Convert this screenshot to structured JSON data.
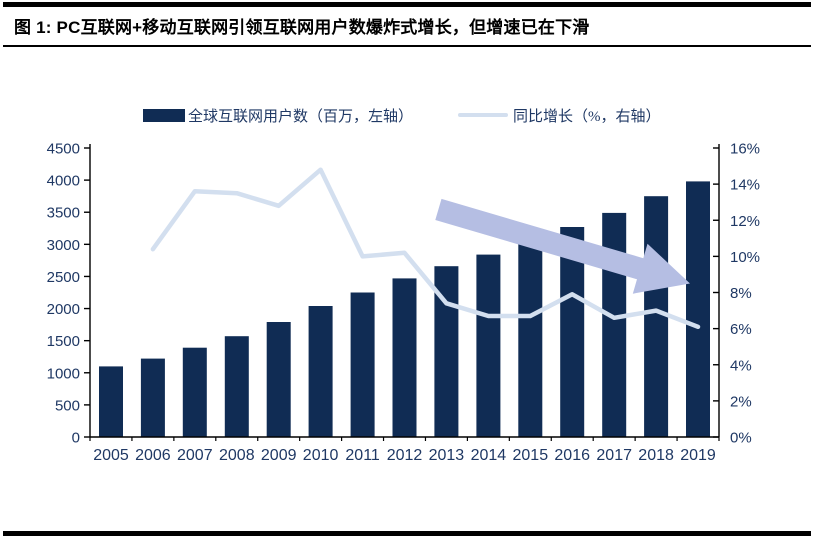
{
  "page": {
    "title": "图 1: PC互联网+移动互联网引领互联网用户数爆炸式增长，但增速已在下滑"
  },
  "legend": {
    "bars_label": "全球互联网用户数（百万，左轴）",
    "line_label": "同比增长（%，右轴）"
  },
  "colors": {
    "bar": "#102c54",
    "line": "#d3dfef",
    "arrow": "#b5bee3",
    "axis_text": "#1f3864",
    "axis_line": "#000000"
  },
  "chart_data": {
    "type": "bar+line",
    "title": "图 1: PC互联网+移动互联网引领互联网用户数爆炸式增长，但增速已在下滑",
    "categories": [
      "2005",
      "2006",
      "2007",
      "2008",
      "2009",
      "2010",
      "2011",
      "2012",
      "2013",
      "2014",
      "2015",
      "2016",
      "2017",
      "2018",
      "2019"
    ],
    "series": [
      {
        "name": "全球互联网用户数（百万，左轴）",
        "type": "bar",
        "axis": "left",
        "values": [
          1100,
          1220,
          1390,
          1570,
          1790,
          2040,
          2250,
          2470,
          2660,
          2840,
          3010,
          3270,
          3490,
          3750,
          3980
        ]
      },
      {
        "name": "同比增长（%，右轴）",
        "type": "line",
        "axis": "right",
        "values": [
          null,
          10.4,
          13.6,
          13.5,
          12.8,
          14.8,
          10.0,
          10.2,
          7.4,
          6.7,
          6.7,
          7.9,
          6.6,
          7.0,
          6.1
        ]
      }
    ],
    "left_axis": {
      "min": 0,
      "max": 4500,
      "step": 500,
      "ticks": [
        "0",
        "500",
        "1000",
        "1500",
        "2000",
        "2500",
        "3000",
        "3500",
        "4000",
        "4500"
      ]
    },
    "right_axis": {
      "min": 0,
      "max": 16,
      "step": 2,
      "ticks": [
        "0%",
        "2%",
        "4%",
        "6%",
        "8%",
        "10%",
        "12%",
        "14%",
        "16%"
      ]
    },
    "grid": false,
    "legend_position": "top",
    "annotation": {
      "type": "arrow-down-trend",
      "from": {
        "category": "2013",
        "pct": 12.6
      },
      "to": {
        "category": "2019",
        "pct": 8.5
      }
    }
  }
}
